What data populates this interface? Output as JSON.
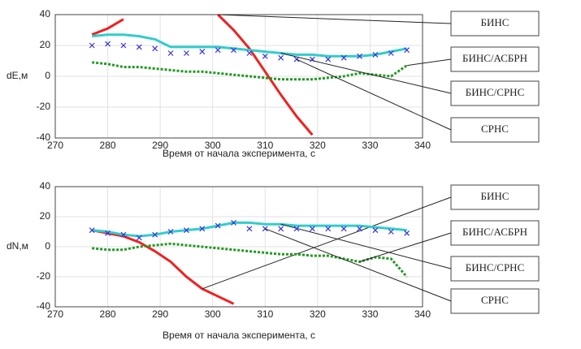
{
  "chart_data": [
    {
      "type": "line",
      "ylabel": "dE,м",
      "xlabel": "Время от начала эксперимента, с",
      "xlim": [
        270,
        340
      ],
      "xticks": [
        270,
        280,
        290,
        300,
        310,
        320,
        330,
        340
      ],
      "ylim": [
        -40,
        40
      ],
      "yticks": [
        -40,
        -20,
        0,
        20,
        40
      ],
      "grid": true,
      "x": [
        277,
        280,
        283,
        286,
        289,
        292,
        295,
        298,
        301,
        304,
        307,
        310,
        313,
        316,
        319,
        322,
        325,
        328,
        331,
        334,
        337
      ],
      "series": [
        {
          "name": "БИНС",
          "color": "#ee2222",
          "values": [
            27,
            31,
            37,
            null,
            null,
            null,
            null,
            null,
            40,
            30,
            18,
            3,
            -12,
            -26,
            -38,
            null,
            null,
            null,
            null,
            null,
            null
          ]
        },
        {
          "name": "БИНС/АСБРН",
          "color": "#229922",
          "values": [
            9,
            8,
            6,
            6,
            5,
            4,
            3,
            3,
            2,
            1,
            0,
            -1,
            -2,
            -2,
            -2,
            -1,
            0,
            2,
            1,
            0,
            7
          ]
        },
        {
          "name": "БИНС/СРНС",
          "color": "#33cccc",
          "values": [
            26,
            27,
            27,
            26,
            24,
            19,
            19,
            19,
            19,
            18,
            17,
            16,
            15,
            14,
            14,
            13,
            13,
            13,
            14,
            16,
            18
          ]
        },
        {
          "name": "СРНС",
          "color": "#3333dd",
          "marker": "x",
          "values": [
            20,
            21,
            20,
            19,
            18,
            15,
            15,
            16,
            17,
            17,
            15,
            13,
            12,
            11,
            11,
            11,
            12,
            13,
            14,
            15,
            17
          ]
        }
      ]
    },
    {
      "type": "line",
      "ylabel": "dN,м",
      "xlabel": "Время от начала эксперимента, с",
      "xlim": [
        270,
        340
      ],
      "xticks": [
        270,
        280,
        290,
        300,
        310,
        320,
        330,
        340
      ],
      "ylim": [
        -40,
        40
      ],
      "yticks": [
        -40,
        -20,
        0,
        20,
        40
      ],
      "grid": true,
      "x": [
        277,
        280,
        283,
        286,
        289,
        292,
        295,
        298,
        301,
        304,
        307,
        310,
        313,
        316,
        319,
        322,
        325,
        328,
        331,
        334,
        337
      ],
      "series": [
        {
          "name": "БИНС",
          "color": "#ee2222",
          "values": [
            11,
            9,
            7,
            3,
            -3,
            -10,
            -20,
            -28,
            -33,
            -38,
            null,
            null,
            null,
            null,
            null,
            null,
            null,
            null,
            null,
            null,
            null
          ]
        },
        {
          "name": "БИНС/АСБРН",
          "color": "#229922",
          "values": [
            -1,
            -2,
            -2,
            0,
            1,
            2,
            1,
            0,
            -1,
            -2,
            -3,
            -4,
            -5,
            -5,
            -6,
            -6,
            -8,
            -10,
            -7,
            -8,
            -20
          ]
        },
        {
          "name": "БИНС/СРНС",
          "color": "#33cccc",
          "values": [
            11,
            10,
            8,
            7,
            8,
            10,
            11,
            12,
            14,
            16,
            16,
            15,
            15,
            14,
            14,
            14,
            14,
            14,
            13,
            12,
            11
          ]
        },
        {
          "name": "СРНС",
          "color": "#3333dd",
          "marker": "x",
          "values": [
            11,
            9,
            8,
            6,
            8,
            10,
            11,
            12,
            14,
            16,
            12,
            12,
            12,
            12,
            12,
            12,
            12,
            12,
            11,
            10,
            9
          ]
        }
      ]
    }
  ]
}
